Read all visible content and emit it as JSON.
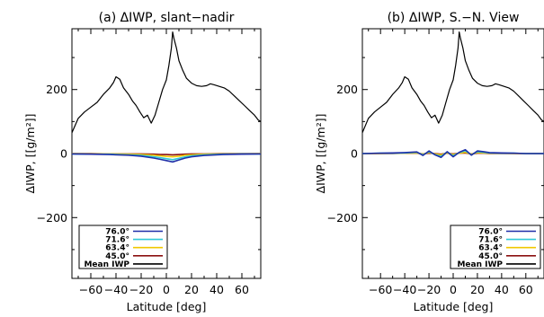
{
  "chart_data": [
    {
      "type": "line",
      "title": "(a) ΔIWP, slant−nadir",
      "xlabel": "Latitude [deg]",
      "ylabel": "ΔIWP, [[g/m²]]",
      "xlim": [
        -75,
        75
      ],
      "ylim": [
        -390,
        390
      ],
      "xticks": [
        -60,
        -40,
        -20,
        0,
        20,
        40,
        60
      ],
      "yticks": [
        -200,
        0,
        200
      ],
      "legend_position": "bottom-left",
      "series": [
        {
          "name": "76.0°",
          "color": "#1f2fa8",
          "x": [
            -75,
            -60,
            -45,
            -30,
            -20,
            -10,
            -5,
            0,
            5,
            10,
            15,
            20,
            30,
            45,
            60,
            75
          ],
          "y": [
            -1,
            -2,
            -3,
            -5,
            -8,
            -14,
            -18,
            -22,
            -26,
            -20,
            -14,
            -10,
            -6,
            -3,
            -2,
            -1
          ]
        },
        {
          "name": "71.6°",
          "color": "#30c8d8",
          "x": [
            -75,
            -60,
            -45,
            -30,
            -20,
            -10,
            -5,
            0,
            5,
            10,
            15,
            20,
            30,
            45,
            60,
            75
          ],
          "y": [
            -1,
            -2,
            -2,
            -4,
            -6,
            -10,
            -13,
            -16,
            -19,
            -15,
            -10,
            -7,
            -4,
            -2,
            -1,
            -1
          ]
        },
        {
          "name": "63.4°",
          "color": "#f0c800",
          "x": [
            -75,
            -60,
            -45,
            -30,
            -20,
            -10,
            -5,
            0,
            5,
            10,
            15,
            20,
            30,
            45,
            60,
            75
          ],
          "y": [
            0,
            -1,
            -1,
            -2,
            -3,
            -5,
            -7,
            -9,
            -10,
            -8,
            -5,
            -4,
            -2,
            -1,
            -1,
            0
          ]
        },
        {
          "name": "45.0°",
          "color": "#8b1010",
          "x": [
            -75,
            -60,
            -45,
            -30,
            -20,
            -10,
            -5,
            0,
            5,
            10,
            15,
            20,
            30,
            45,
            60,
            75
          ],
          "y": [
            0,
            0,
            -1,
            -1,
            -1,
            -2,
            -3,
            -3,
            -4,
            -3,
            -2,
            -1,
            -1,
            0,
            0,
            0
          ]
        },
        {
          "name": "Mean IWP",
          "color": "#000000",
          "x": [
            -75,
            -70,
            -65,
            -60,
            -55,
            -50,
            -45,
            -42,
            -40,
            -37,
            -34,
            -30,
            -27,
            -24,
            -21,
            -18,
            -15,
            -12,
            -9,
            -6,
            -3,
            0,
            2,
            4,
            5,
            6,
            8,
            10,
            13,
            16,
            20,
            24,
            28,
            32,
            35,
            38,
            42,
            46,
            50,
            54,
            58,
            62,
            66,
            70,
            73,
            75
          ],
          "y": [
            65,
            110,
            130,
            145,
            160,
            185,
            205,
            222,
            240,
            232,
            205,
            185,
            165,
            150,
            130,
            112,
            120,
            95,
            120,
            160,
            200,
            230,
            275,
            330,
            380,
            360,
            330,
            290,
            260,
            235,
            220,
            212,
            210,
            212,
            218,
            215,
            210,
            205,
            195,
            180,
            165,
            150,
            135,
            120,
            105,
            100
          ]
        }
      ]
    },
    {
      "type": "line",
      "title": "(b) ΔIWP, S.−N. View",
      "xlabel": "Latitude [deg]",
      "ylabel": "ΔIWP, [[g/m²]]",
      "xlim": [
        -75,
        75
      ],
      "ylim": [
        -390,
        390
      ],
      "xticks": [
        -60,
        -40,
        -20,
        0,
        20,
        40,
        60
      ],
      "yticks": [
        -200,
        0,
        200
      ],
      "legend_position": "bottom-right",
      "series": [
        {
          "name": "76.0°",
          "color": "#1f2fa8",
          "x": [
            -75,
            -60,
            -50,
            -40,
            -30,
            -25,
            -20,
            -15,
            -10,
            -5,
            0,
            5,
            10,
            15,
            20,
            25,
            30,
            40,
            50,
            60,
            75
          ],
          "y": [
            0,
            1,
            2,
            3,
            5,
            -6,
            8,
            -4,
            -12,
            6,
            -10,
            4,
            12,
            -5,
            8,
            6,
            3,
            2,
            1,
            0,
            0
          ]
        },
        {
          "name": "71.6°",
          "color": "#30c8d8",
          "x": [
            -75,
            -60,
            -50,
            -40,
            -30,
            -25,
            -20,
            -15,
            -10,
            -5,
            0,
            5,
            10,
            15,
            20,
            25,
            30,
            40,
            50,
            60,
            75
          ],
          "y": [
            0,
            1,
            1,
            2,
            4,
            -4,
            6,
            -3,
            -9,
            5,
            -7,
            3,
            9,
            -4,
            6,
            4,
            2,
            1,
            1,
            0,
            0
          ]
        },
        {
          "name": "63.4°",
          "color": "#f0c800",
          "x": [
            -75,
            -60,
            -50,
            -40,
            -30,
            -25,
            -20,
            -15,
            -10,
            -5,
            0,
            5,
            10,
            15,
            20,
            25,
            30,
            40,
            50,
            60,
            75
          ],
          "y": [
            0,
            0,
            1,
            1,
            2,
            -2,
            3,
            -1,
            -4,
            2,
            -3,
            1,
            4,
            -2,
            3,
            2,
            1,
            1,
            0,
            0,
            0
          ]
        },
        {
          "name": "45.0°",
          "color": "#8b1010",
          "x": [
            -75,
            -60,
            -50,
            -40,
            -30,
            -25,
            -20,
            -15,
            -10,
            -5,
            0,
            5,
            10,
            15,
            20,
            25,
            30,
            40,
            50,
            60,
            75
          ],
          "y": [
            0,
            0,
            0,
            1,
            1,
            -1,
            1,
            0,
            -2,
            1,
            -1,
            1,
            2,
            -1,
            1,
            1,
            0,
            0,
            0,
            0,
            0
          ]
        },
        {
          "name": "Mean IWP",
          "color": "#000000",
          "x": [
            -75,
            -70,
            -65,
            -60,
            -55,
            -50,
            -45,
            -42,
            -40,
            -37,
            -34,
            -30,
            -27,
            -24,
            -21,
            -18,
            -15,
            -12,
            -9,
            -6,
            -3,
            0,
            2,
            4,
            5,
            6,
            8,
            10,
            13,
            16,
            20,
            24,
            28,
            32,
            35,
            38,
            42,
            46,
            50,
            54,
            58,
            62,
            66,
            70,
            73,
            75
          ],
          "y": [
            65,
            110,
            130,
            145,
            160,
            185,
            205,
            222,
            240,
            232,
            205,
            185,
            165,
            150,
            130,
            112,
            120,
            95,
            120,
            160,
            200,
            230,
            275,
            330,
            380,
            360,
            330,
            290,
            260,
            235,
            220,
            212,
            210,
            212,
            218,
            215,
            210,
            205,
            195,
            180,
            165,
            150,
            135,
            120,
            105,
            100
          ]
        }
      ]
    }
  ]
}
